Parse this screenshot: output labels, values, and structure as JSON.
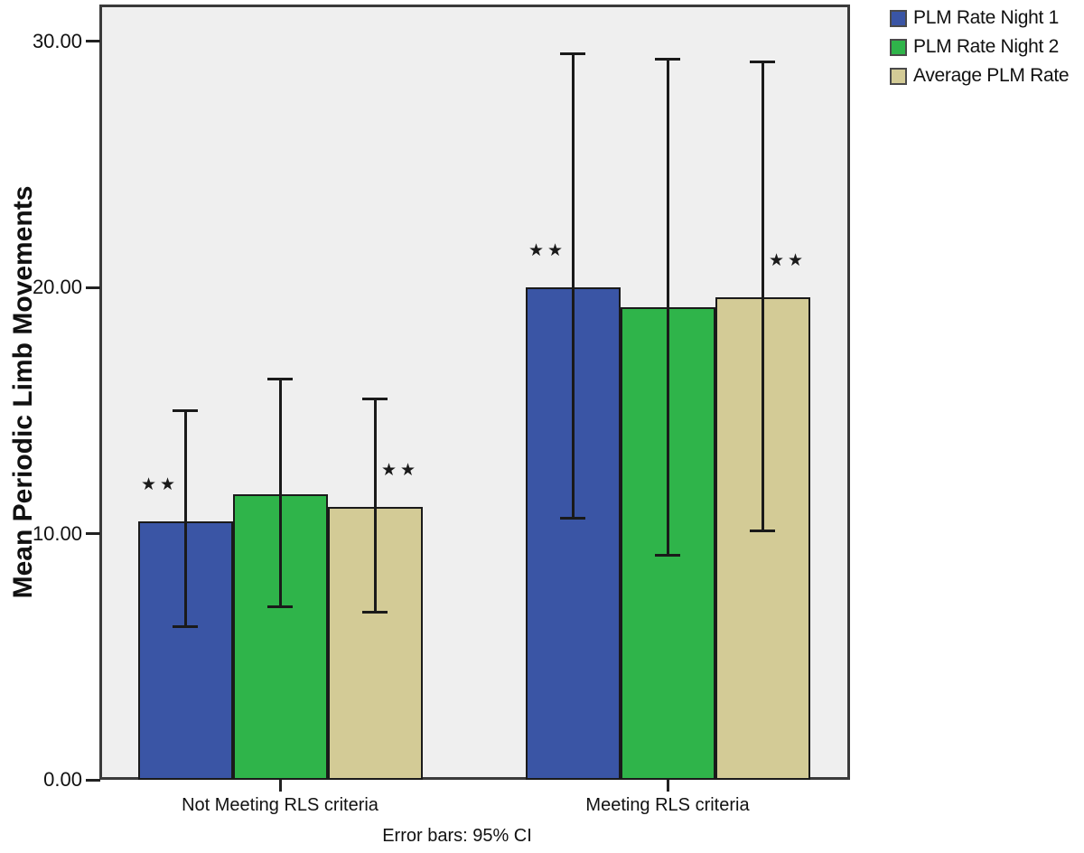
{
  "chart_data": {
    "type": "bar",
    "title": "",
    "xlabel": "",
    "ylabel": "Mean Periodic Limb Movements",
    "footnote": "Error bars: 95% CI",
    "categories": [
      "Not Meeting RLS criteria",
      "Meeting RLS criteria"
    ],
    "ylim": [
      0,
      31.5
    ],
    "yticks": [
      {
        "value": 0,
        "label": "0.00"
      },
      {
        "value": 10,
        "label": "10.00"
      },
      {
        "value": 20,
        "label": "20.00"
      },
      {
        "value": 30,
        "label": "30.00"
      }
    ],
    "grid": false,
    "legend_position": "top-right",
    "plot_background": "#efefef",
    "axis_color": "#3a3a3a",
    "error_bar_color": "#1a1a1a",
    "sig_display": "★★",
    "series": [
      {
        "name": "PLM Rate Night 1",
        "color": "#3a55a5",
        "values": [
          10.5,
          20.0
        ],
        "ci_low": [
          6.2,
          10.6
        ],
        "ci_high": [
          15.0,
          29.5
        ],
        "significance": [
          "**",
          "**"
        ]
      },
      {
        "name": "PLM Rate Night 2",
        "color": "#2fb44a",
        "values": [
          11.6,
          19.2
        ],
        "ci_low": [
          7.0,
          9.1
        ],
        "ci_high": [
          16.3,
          29.3
        ],
        "significance": [
          "",
          ""
        ]
      },
      {
        "name": "Average PLM Rate",
        "color": "#d3cb96",
        "values": [
          11.1,
          19.6
        ],
        "ci_low": [
          6.8,
          10.1
        ],
        "ci_high": [
          15.5,
          29.2
        ],
        "significance": [
          "**",
          "**"
        ]
      }
    ]
  }
}
